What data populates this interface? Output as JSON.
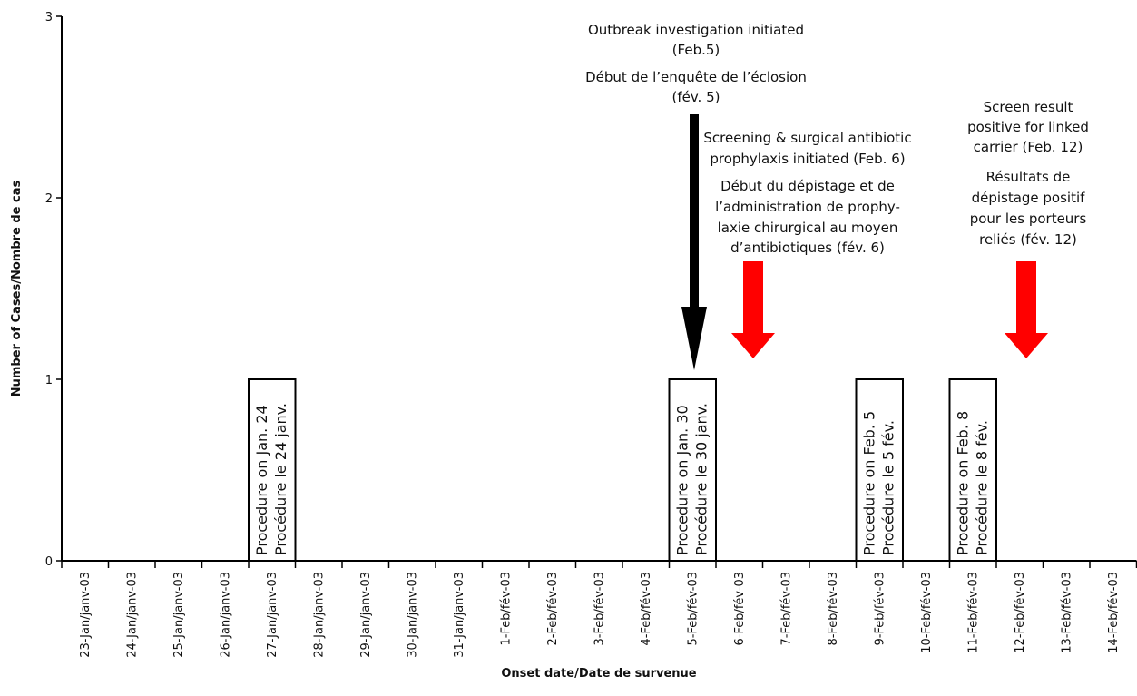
{
  "chart_data": {
    "type": "bar",
    "x_label": "Onset date/Date de survenue",
    "y_label": "Number of Cases/Nombre de cas",
    "categories": [
      "23-Jan/janv-03",
      "24-Jan/janv-03",
      "25-Jan/janv-03",
      "26-Jan/janv-03",
      "27-Jan/janv-03",
      "28-Jan/janv-03",
      "29-Jan/janv-03",
      "30-Jan/janv-03",
      "31-Jan/janv-03",
      "1-Feb/fév-03",
      "2-Feb/fév-03",
      "3-Feb/fév-03",
      "4-Feb/fév-03",
      "5-Feb/fév-03",
      "6-Feb/fév-03",
      "7-Feb/fév-03",
      "8-Feb/fév-03",
      "9-Feb/fév-03",
      "10-Feb/fév-03",
      "11-Feb/fév-03",
      "12-Feb/fév-03",
      "13-Feb/fév-03",
      "14-Feb/fév-03"
    ],
    "values": [
      0,
      0,
      0,
      0,
      1,
      0,
      0,
      0,
      0,
      0,
      0,
      0,
      0,
      1,
      0,
      0,
      0,
      1,
      0,
      1,
      0,
      0,
      0
    ],
    "bar_labels": [
      null,
      null,
      null,
      null,
      [
        "Procedure on Jan. 24",
        "Procédure le 24 janv."
      ],
      null,
      null,
      null,
      null,
      null,
      null,
      null,
      null,
      [
        "Procedure on Jan. 30",
        "Procédure le 30 janv."
      ],
      null,
      null,
      null,
      [
        "Procedure on Feb. 5",
        "Procédure le 5 fév."
      ],
      null,
      [
        "Procedure on Feb. 8",
        "Procédure le 8 fév."
      ],
      null,
      null,
      null
    ],
    "color": "#ffffff",
    "ylim": [
      0,
      3
    ],
    "yticks": [
      0,
      1,
      2,
      3
    ],
    "annotations": [
      {
        "lines": [
          "Outbreak investigation initiated",
          "(Feb.5)",
          "Début de l’enquête de l’éclosion",
          "(fév. 5)"
        ],
        "color": "#000000"
      },
      {
        "lines": [
          "Screening & surgical antibiotic",
          "prophylaxis initiated (Feb. 6)",
          "Début du dépistage et de",
          "l’administration de prophy-",
          "laxie chirurgical au moyen",
          "d’antibiotiques (fév. 6)"
        ],
        "color": "#ff0000"
      },
      {
        "lines": [
          "Screen result",
          "positive for linked",
          "carrier (Feb. 12)",
          "Résultats de",
          "dépistage positif",
          "pour les porteurs",
          "reliés (fév. 12)"
        ],
        "color": "#ff0000"
      }
    ]
  }
}
